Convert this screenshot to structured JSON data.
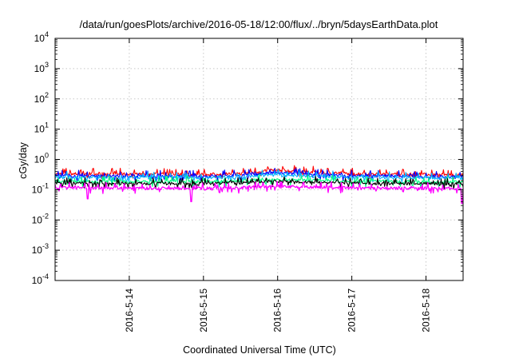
{
  "chart_data": {
    "type": "line",
    "title": "/data/run/goesPlots/archive/2016-05-18/12:00/flux/../bryn/5daysEarthData.plot",
    "xlabel": "Coordinated Universal Time (UTC)",
    "ylabel": "cGy/day",
    "yscale": "log",
    "ylim": [
      0.0001,
      10000
    ],
    "y_ticks": [
      {
        "value": 0.0001,
        "base": "10",
        "exp": "-4"
      },
      {
        "value": 0.001,
        "base": "10",
        "exp": "-3"
      },
      {
        "value": 0.01,
        "base": "10",
        "exp": "-2"
      },
      {
        "value": 0.1,
        "base": "10",
        "exp": "-1"
      },
      {
        "value": 1,
        "base": "10",
        "exp": "0"
      },
      {
        "value": 10,
        "base": "10",
        "exp": "1"
      },
      {
        "value": 100,
        "base": "10",
        "exp": "2"
      },
      {
        "value": 1000,
        "base": "10",
        "exp": "3"
      },
      {
        "value": 10000,
        "base": "10",
        "exp": "4"
      }
    ],
    "xlim": [
      "2016-05-13 00:00",
      "2016-05-18 12:00"
    ],
    "x_ticks": [
      {
        "value": "2016-05-14 00:00",
        "label": "2016-5-14"
      },
      {
        "value": "2016-05-15 00:00",
        "label": "2016-5-15"
      },
      {
        "value": "2016-05-16 00:00",
        "label": "2016-5-16"
      },
      {
        "value": "2016-05-17 00:00",
        "label": "2016-5-17"
      },
      {
        "value": "2016-05-18 00:00",
        "label": "2016-5-18"
      }
    ],
    "grid": true,
    "legend": "none",
    "series": [
      {
        "color": "#ff0000",
        "level": [
          [
            "2016-05-13 00:00",
            0.34
          ],
          [
            "2016-05-14 00:00",
            0.33
          ],
          [
            "2016-05-15 00:00",
            0.32
          ],
          [
            "2016-05-15 12:00",
            0.34
          ],
          [
            "2016-05-15 22:00",
            0.45
          ],
          [
            "2016-05-16 12:00",
            0.38
          ],
          [
            "2016-05-17 00:00",
            0.34
          ],
          [
            "2016-05-18 00:00",
            0.32
          ],
          [
            "2016-05-18 12:00",
            0.3
          ]
        ]
      },
      {
        "color": "#0000ff",
        "level": [
          [
            "2016-05-13 00:00",
            0.29
          ],
          [
            "2016-05-14 00:00",
            0.28
          ],
          [
            "2016-05-15 00:00",
            0.28
          ],
          [
            "2016-05-15 12:00",
            0.3
          ],
          [
            "2016-05-15 22:00",
            0.36
          ],
          [
            "2016-05-16 12:00",
            0.32
          ],
          [
            "2016-05-17 00:00",
            0.29
          ],
          [
            "2016-05-18 00:00",
            0.28
          ],
          [
            "2016-05-18 12:00",
            0.27
          ]
        ]
      },
      {
        "color": "#00b4ff",
        "level": [
          [
            "2016-05-13 00:00",
            0.26
          ],
          [
            "2016-05-14 00:00",
            0.25
          ],
          [
            "2016-05-15 00:00",
            0.25
          ],
          [
            "2016-05-15 12:00",
            0.27
          ],
          [
            "2016-05-15 22:00",
            0.31
          ],
          [
            "2016-05-16 12:00",
            0.28
          ],
          [
            "2016-05-17 00:00",
            0.26
          ],
          [
            "2016-05-18 00:00",
            0.25
          ],
          [
            "2016-05-18 12:00",
            0.24
          ]
        ]
      },
      {
        "color": "#00ff80",
        "level": [
          [
            "2016-05-13 00:00",
            0.19
          ],
          [
            "2016-05-14 00:00",
            0.185
          ],
          [
            "2016-05-15 00:00",
            0.185
          ],
          [
            "2016-05-15 12:00",
            0.195
          ],
          [
            "2016-05-15 22:00",
            0.22
          ],
          [
            "2016-05-16 12:00",
            0.205
          ],
          [
            "2016-05-17 00:00",
            0.19
          ],
          [
            "2016-05-18 00:00",
            0.185
          ],
          [
            "2016-05-18 12:00",
            0.18
          ]
        ]
      },
      {
        "color": "#000000",
        "level": [
          [
            "2016-05-13 00:00",
            0.165
          ],
          [
            "2016-05-14 00:00",
            0.16
          ],
          [
            "2016-05-15 00:00",
            0.16
          ],
          [
            "2016-05-15 12:00",
            0.17
          ],
          [
            "2016-05-15 22:00",
            0.19
          ],
          [
            "2016-05-16 12:00",
            0.178
          ],
          [
            "2016-05-17 00:00",
            0.165
          ],
          [
            "2016-05-18 00:00",
            0.16
          ],
          [
            "2016-05-18 12:00",
            0.155
          ]
        ]
      },
      {
        "color": "#ff00ff",
        "level": [
          [
            "2016-05-13 00:00",
            0.115
          ],
          [
            "2016-05-14 00:00",
            0.112
          ],
          [
            "2016-05-15 00:00",
            0.112
          ],
          [
            "2016-05-15 12:00",
            0.118
          ],
          [
            "2016-05-15 22:00",
            0.13
          ],
          [
            "2016-05-16 12:00",
            0.122
          ],
          [
            "2016-05-17 00:00",
            0.115
          ],
          [
            "2016-05-18 00:00",
            0.112
          ],
          [
            "2016-05-18 12:00",
            0.11
          ]
        ],
        "dips": [
          [
            "2016-05-13 10:30",
            0.05
          ],
          [
            "2016-05-14 20:00",
            0.04
          ],
          [
            "2016-05-18 11:40",
            0.035
          ]
        ]
      }
    ]
  }
}
